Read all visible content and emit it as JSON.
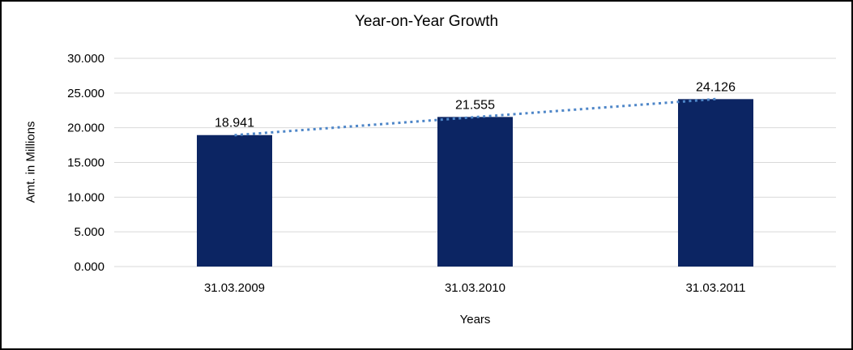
{
  "window": {
    "background": "#ffffff",
    "border_color": "#000000"
  },
  "chart_data": {
    "type": "bar",
    "title": "Year-on-Year Growth",
    "xlabel": "Years",
    "ylabel": "Amt. in Millions",
    "categories": [
      "31.03.2009",
      "31.03.2010",
      "31.03.2011"
    ],
    "values": [
      18.941,
      21.555,
      24.126
    ],
    "value_labels": [
      "18.941",
      "21.555",
      "24.126"
    ],
    "ylim": [
      0,
      30
    ],
    "ytick_values": [
      0,
      5,
      10,
      15,
      20,
      25,
      30
    ],
    "ytick_labels": [
      "0.000",
      "5.000",
      "10.000",
      "15.000",
      "20.000",
      "25.000",
      "30.000"
    ],
    "grid": true,
    "legend": false,
    "bar_color": "#0c2563",
    "gridline_color": "#d9d9d9",
    "text_color": "#000000",
    "trendline": {
      "type": "linear",
      "style": "dotted",
      "color": "#4e86c8",
      "endpoint_values": [
        18.93,
        24.13
      ]
    }
  }
}
